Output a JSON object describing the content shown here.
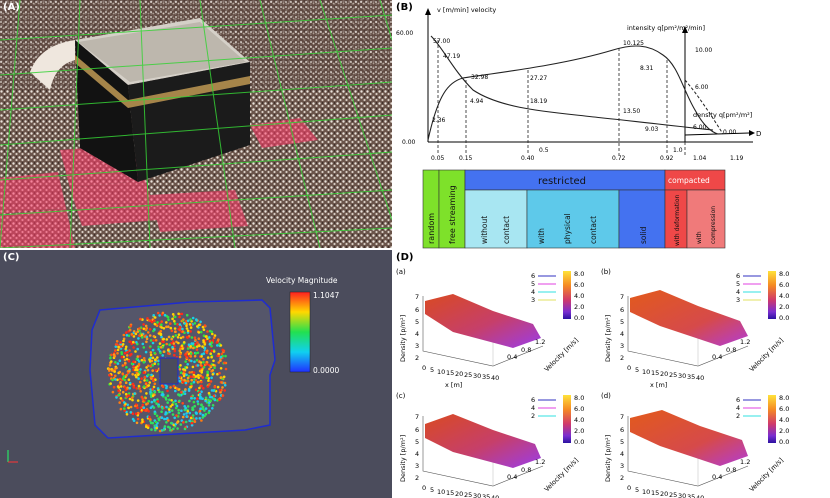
{
  "panel_a": {
    "label": "(A)"
  },
  "panel_b": {
    "label": "(B)",
    "velocity_axis": "v [m/min]  velocity",
    "intensity_axis": "intensity q[pm²/m²/min]",
    "density_axis": "density q[pm²/m²]",
    "d_label": "D",
    "y_ticks": [
      "60.00",
      "0.00"
    ],
    "intensity_ticks": [
      "10.00",
      "6.00",
      "0.00"
    ],
    "x_ticks": [
      "0.05",
      "0.15",
      "0.40",
      "0.72",
      "0.92",
      "1.04",
      "1.19"
    ],
    "extra_labels": [
      "0.5",
      "1.0"
    ],
    "value_labels": [
      "57.00",
      "47.19",
      "32.98",
      "27.27",
      "10.125",
      "8.31",
      "4.94",
      "18.19",
      "13.50",
      "9.03",
      "2.36",
      "6.00"
    ],
    "phases": {
      "random": "random",
      "free": "free streaming",
      "restricted": "restricted",
      "compacted": "compacted",
      "without_1": "without",
      "without_2": "contact",
      "physical_1": "with",
      "physical_2": "physical",
      "physical_3": "contact",
      "solid": "solid",
      "deformation": "with deformation",
      "compression_1": "with",
      "compression_2": "compression"
    }
  },
  "panel_c": {
    "label": "(C)",
    "legend_title": "Velocity Magnitude",
    "max_value": "1.1047",
    "min_value": "0.0000"
  },
  "panel_d": {
    "label": "(D)",
    "subplots": [
      {
        "label": "(a)",
        "contours": [
          "6",
          "5",
          "4",
          "3"
        ],
        "color_ticks": [
          "8.0",
          "6.0",
          "4.0",
          "2.0",
          "0.0"
        ]
      },
      {
        "label": "(b)",
        "contours": [
          "6",
          "5",
          "4",
          "3"
        ],
        "color_ticks": [
          "8.0",
          "6.0",
          "4.0",
          "2.0",
          "0.0"
        ]
      },
      {
        "label": "(c)",
        "contours": [
          "6",
          "4",
          "2"
        ],
        "color_ticks": [
          "8.0",
          "6.0",
          "4.0",
          "2.0",
          "0.0"
        ]
      },
      {
        "label": "(d)",
        "contours": [
          "6",
          "4",
          "2"
        ],
        "color_ticks": [
          "8.0",
          "6.0",
          "4.0",
          "2.0",
          "0.0"
        ]
      }
    ],
    "density_axis": "Density [p/m²]",
    "x_axis": "x [m]",
    "velocity_axis": "Velocity [m/s]",
    "z_ticks": [
      "7",
      "6",
      "5",
      "4",
      "3",
      "2"
    ],
    "x_ticks": [
      "0",
      "5",
      "10",
      "15",
      "20",
      "25",
      "30",
      "35",
      "40"
    ],
    "v_ticks": [
      "1.2",
      "0.8",
      "0.4"
    ]
  },
  "colors": {
    "random": "#7ee12a",
    "restricted": "#4472f0",
    "compacted": "#ef4848",
    "grid": "#36d236",
    "surface_hi": "#e05a1a",
    "surface_lo": "#a43ce8"
  }
}
